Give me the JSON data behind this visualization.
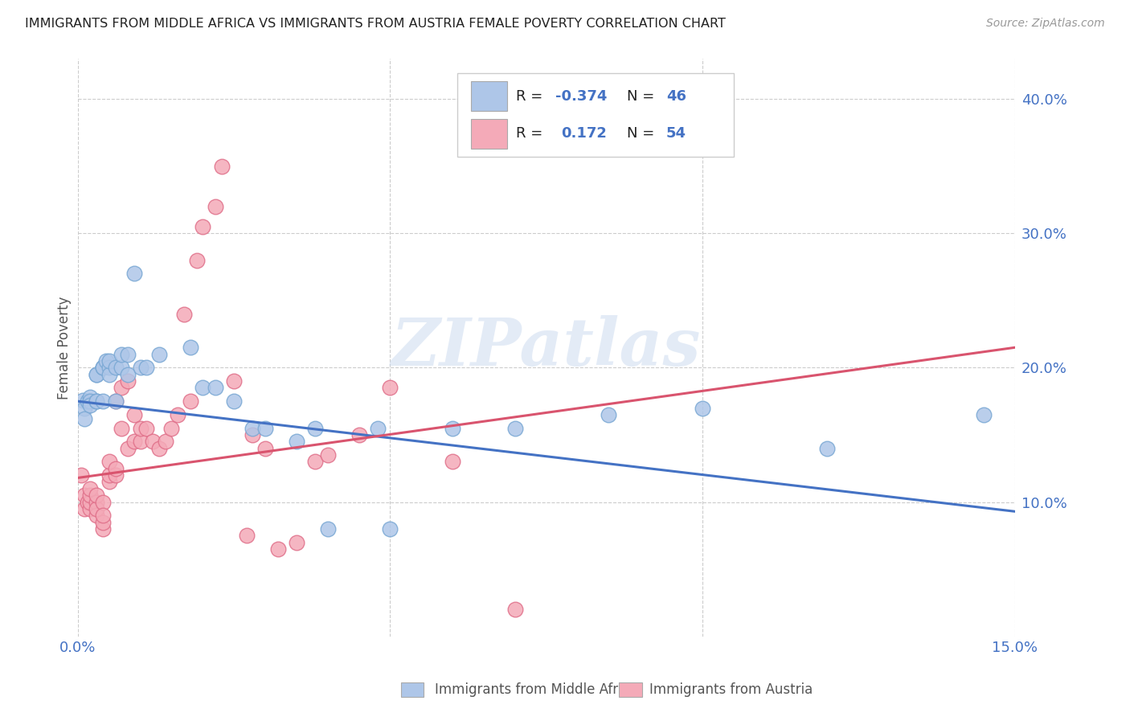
{
  "title": "IMMIGRANTS FROM MIDDLE AFRICA VS IMMIGRANTS FROM AUSTRIA FEMALE POVERTY CORRELATION CHART",
  "source": "Source: ZipAtlas.com",
  "ylabel": "Female Poverty",
  "yaxis_ticks": [
    0.1,
    0.2,
    0.3,
    0.4
  ],
  "xlim": [
    0.0,
    0.15
  ],
  "ylim": [
    0.0,
    0.43
  ],
  "color_blue": "#aec6e8",
  "color_pink": "#f4aab8",
  "color_blue_edge": "#7aa8d4",
  "color_pink_edge": "#e0708a",
  "color_text_blue": "#4472c4",
  "color_trendline_blue": "#4472c4",
  "color_trendline_pink": "#d9546e",
  "trendline_blue": [
    [
      0.0,
      0.175
    ],
    [
      0.15,
      0.093
    ]
  ],
  "trendline_pink": [
    [
      0.0,
      0.118
    ],
    [
      0.15,
      0.215
    ]
  ],
  "blue_x": [
    0.0008,
    0.001,
    0.001,
    0.0015,
    0.002,
    0.002,
    0.002,
    0.003,
    0.003,
    0.003,
    0.003,
    0.004,
    0.004,
    0.004,
    0.004,
    0.0045,
    0.005,
    0.005,
    0.005,
    0.006,
    0.006,
    0.007,
    0.007,
    0.008,
    0.008,
    0.009,
    0.01,
    0.011,
    0.013,
    0.018,
    0.02,
    0.022,
    0.025,
    0.028,
    0.03,
    0.035,
    0.038,
    0.04,
    0.048,
    0.05,
    0.06,
    0.07,
    0.085,
    0.1,
    0.12,
    0.145
  ],
  "blue_y": [
    0.176,
    0.17,
    0.162,
    0.175,
    0.178,
    0.175,
    0.172,
    0.195,
    0.175,
    0.175,
    0.195,
    0.2,
    0.175,
    0.2,
    0.2,
    0.205,
    0.2,
    0.195,
    0.205,
    0.175,
    0.2,
    0.2,
    0.21,
    0.21,
    0.195,
    0.27,
    0.2,
    0.2,
    0.21,
    0.215,
    0.185,
    0.185,
    0.175,
    0.155,
    0.155,
    0.145,
    0.155,
    0.08,
    0.155,
    0.08,
    0.155,
    0.155,
    0.165,
    0.17,
    0.14,
    0.165
  ],
  "pink_x": [
    0.0005,
    0.001,
    0.001,
    0.0015,
    0.002,
    0.002,
    0.002,
    0.002,
    0.003,
    0.003,
    0.003,
    0.003,
    0.004,
    0.004,
    0.004,
    0.004,
    0.005,
    0.005,
    0.005,
    0.006,
    0.006,
    0.006,
    0.007,
    0.007,
    0.008,
    0.008,
    0.009,
    0.009,
    0.01,
    0.01,
    0.011,
    0.012,
    0.013,
    0.014,
    0.015,
    0.016,
    0.017,
    0.018,
    0.019,
    0.02,
    0.022,
    0.023,
    0.025,
    0.027,
    0.028,
    0.03,
    0.032,
    0.035,
    0.038,
    0.04,
    0.045,
    0.05,
    0.06,
    0.07
  ],
  "pink_y": [
    0.12,
    0.105,
    0.095,
    0.1,
    0.095,
    0.1,
    0.105,
    0.11,
    0.1,
    0.09,
    0.095,
    0.105,
    0.1,
    0.08,
    0.085,
    0.09,
    0.115,
    0.12,
    0.13,
    0.12,
    0.125,
    0.175,
    0.155,
    0.185,
    0.14,
    0.19,
    0.145,
    0.165,
    0.145,
    0.155,
    0.155,
    0.145,
    0.14,
    0.145,
    0.155,
    0.165,
    0.24,
    0.175,
    0.28,
    0.305,
    0.32,
    0.35,
    0.19,
    0.075,
    0.15,
    0.14,
    0.065,
    0.07,
    0.13,
    0.135,
    0.15,
    0.185,
    0.13,
    0.02
  ],
  "watermark": "ZIPatlas",
  "background_color": "#ffffff",
  "grid_color": "#cccccc",
  "legend_items": [
    {
      "label_r": "R = -0.374",
      "label_n": "N = 46"
    },
    {
      "label_r": "R =  0.172",
      "label_n": "N = 54"
    }
  ]
}
